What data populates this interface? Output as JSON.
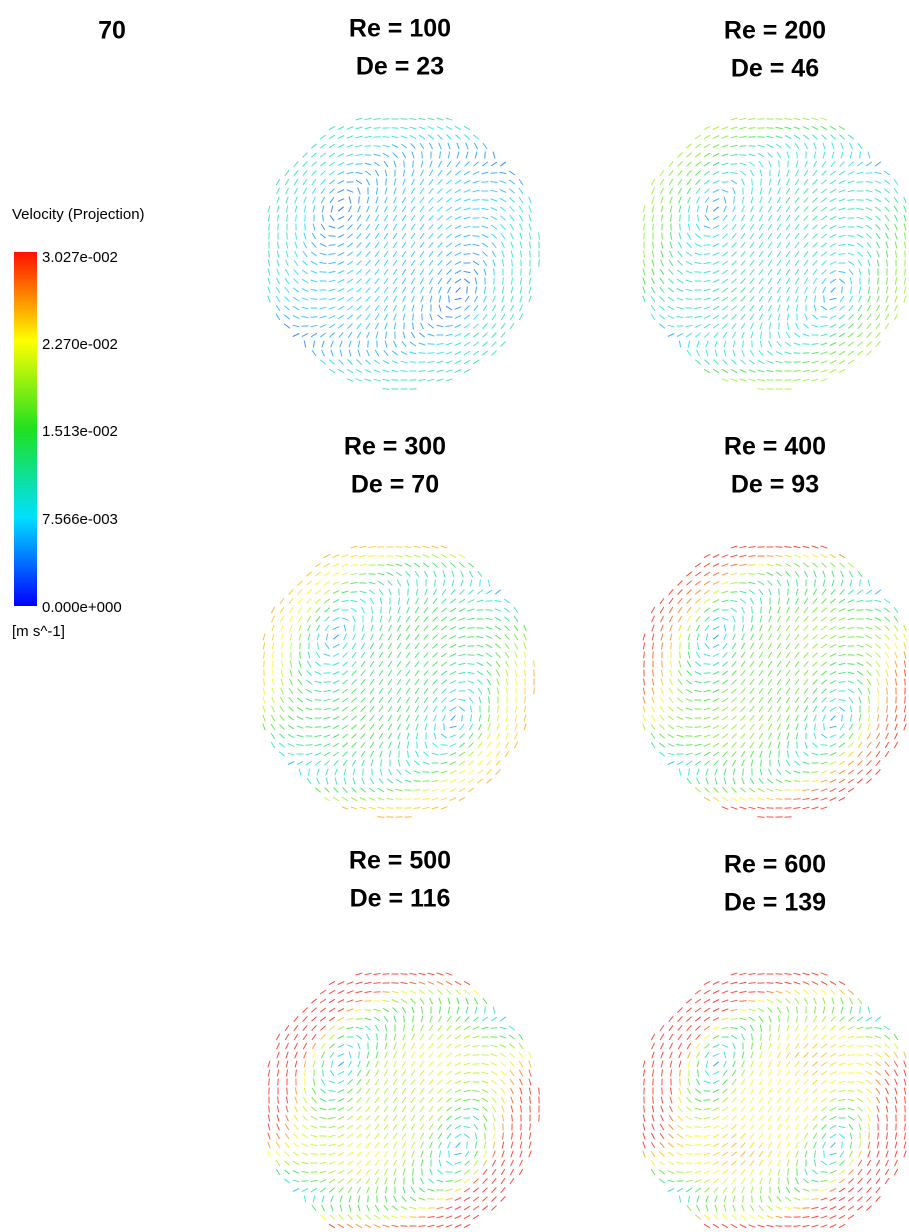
{
  "corner_label": "70",
  "legend": {
    "title": "Velocity (Projection)",
    "ticks": [
      "3.027e-002",
      "2.270e-002",
      "1.513e-002",
      "7.566e-003",
      "0.000e+000"
    ],
    "unit": "[m s^-1]"
  },
  "panels": [
    {
      "re": "Re = 100",
      "de": "De = 23"
    },
    {
      "re": "Re = 200",
      "de": "De = 46"
    },
    {
      "re": "Re = 300",
      "de": "De = 70"
    },
    {
      "re": "Re = 400",
      "de": "De = 93"
    },
    {
      "re": "Re = 500",
      "de": "De = 116"
    },
    {
      "re": "Re = 600",
      "de": "De = 139"
    }
  ]
}
